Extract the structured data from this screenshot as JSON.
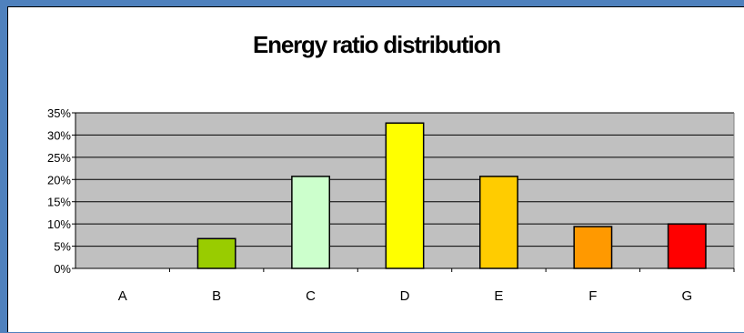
{
  "chart_data": {
    "type": "bar",
    "title": "Energy ratio distribution",
    "categories": [
      "A",
      "B",
      "C",
      "D",
      "E",
      "F",
      "G"
    ],
    "values": [
      0,
      6.7,
      20.7,
      32.7,
      20.7,
      9.4,
      10.0
    ],
    "colors": [
      "#ffffff",
      "#99cc00",
      "#ccffcc",
      "#ffff00",
      "#ffcc00",
      "#ff9900",
      "#ff0000"
    ],
    "y_ticks": [
      "0%",
      "5%",
      "10%",
      "15%",
      "20%",
      "25%",
      "30%",
      "35%"
    ],
    "ylim": [
      0,
      35
    ],
    "grid": true,
    "plot_background": "#c0c0c0",
    "legend": "none"
  }
}
